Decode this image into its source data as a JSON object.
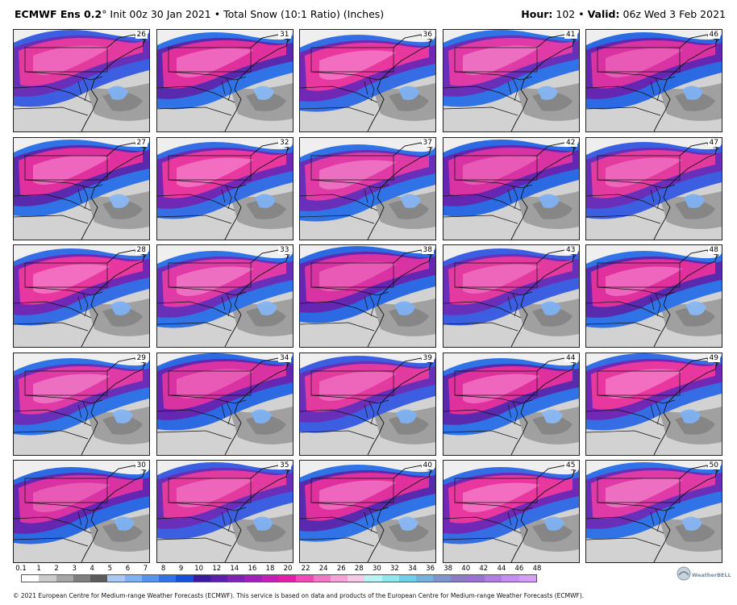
{
  "header": {
    "model": "ECMWF Ens 0.2",
    "degree": "°",
    "init": " Init 00z 30 Jan 2021 • Total Snow (10:1 Ratio) (Inches)",
    "hour_label": "Hour:",
    "hour_value": " 102 • ",
    "valid_label": "Valid:",
    "valid_value": " 06z Wed 3 Feb 2021"
  },
  "members": [
    "26",
    "31",
    "36",
    "41",
    "46",
    "27",
    "32",
    "37",
    "42",
    "47",
    "28",
    "33",
    "38",
    "43",
    "48",
    "29",
    "34",
    "39",
    "44",
    "49",
    "30",
    "35",
    "40",
    "45",
    "50"
  ],
  "scale": {
    "labels": [
      "0.1",
      "1",
      "2",
      "3",
      "4",
      "5",
      "6",
      "7",
      "8",
      "9",
      "10",
      "12",
      "14",
      "16",
      "18",
      "20",
      "22",
      "24",
      "26",
      "28",
      "30",
      "32",
      "34",
      "36",
      "38",
      "40",
      "42",
      "44",
      "46",
      "48"
    ],
    "colors": [
      "#ffffff",
      "#cccccc",
      "#a6a6a6",
      "#7f7f7f",
      "#5a5a5a",
      "#a9c9f5",
      "#7fb1f3",
      "#5694ee",
      "#2f73e6",
      "#1550d9",
      "#3b1aa3",
      "#5b1fb0",
      "#7d22b5",
      "#a020b9",
      "#c51fb3",
      "#e21fa6",
      "#f04ab8",
      "#f377c9",
      "#f6a3da",
      "#f7c8e8",
      "#b8f4f6",
      "#8fe8f0",
      "#6fd0e8",
      "#76b3da",
      "#7f95cd",
      "#8c7cc4",
      "#9a73d2",
      "#b27ee2",
      "#c78df0",
      "#d79ef8"
    ]
  },
  "logo": {
    "text": "WeatherBELL",
    "icon": "weatherbell-logo-icon"
  },
  "footer": "© 2021 European Centre for Medium-range Weather Forecasts (ECMWF). This service is based on data and products of the European Centre for Medium-range Weather Forecasts (ECMWF)."
}
